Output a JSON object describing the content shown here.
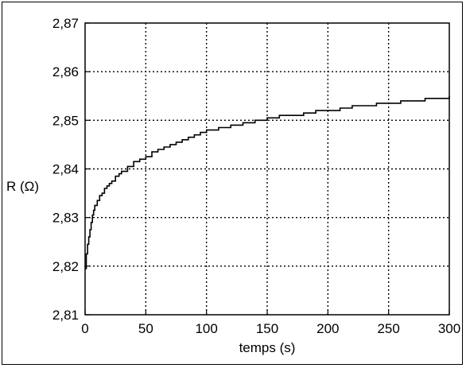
{
  "chart_data": {
    "type": "line",
    "title": "",
    "xlabel": "temps (s)",
    "ylabel": "R (Ω)",
    "xlim": [
      0,
      300
    ],
    "ylim": [
      2.81,
      2.87
    ],
    "x_ticks": [
      "0",
      "50",
      "100",
      "150",
      "200",
      "250",
      "300"
    ],
    "y_ticks": [
      "2,81",
      "2,82",
      "2,83",
      "2,84",
      "2,85",
      "2,86",
      "2,87"
    ],
    "grid": true,
    "series": [
      {
        "color": "#000000",
        "x": [
          0,
          1,
          2,
          3,
          4,
          5,
          6,
          7,
          8,
          10,
          12,
          14,
          16,
          18,
          20,
          22,
          25,
          28,
          30,
          35,
          40,
          45,
          50,
          55,
          60,
          65,
          70,
          75,
          80,
          85,
          90,
          95,
          100,
          110,
          120,
          130,
          140,
          150,
          160,
          170,
          180,
          190,
          200,
          210,
          220,
          230,
          240,
          250,
          260,
          270,
          280,
          290,
          300
        ],
        "y": [
          2.8195,
          2.8225,
          2.8245,
          2.826,
          2.8275,
          2.829,
          2.8305,
          2.8315,
          2.8325,
          2.8335,
          2.8345,
          2.835,
          2.836,
          2.8365,
          2.837,
          2.8375,
          2.8385,
          2.839,
          2.8395,
          2.8405,
          2.8415,
          2.842,
          2.8425,
          2.8435,
          2.844,
          2.8445,
          2.845,
          2.8455,
          2.846,
          2.8465,
          2.847,
          2.8475,
          2.848,
          2.8485,
          2.849,
          2.8495,
          2.85,
          2.8505,
          2.851,
          2.851,
          2.8515,
          2.852,
          2.852,
          2.8525,
          2.853,
          2.853,
          2.8535,
          2.8535,
          2.854,
          2.854,
          2.8545,
          2.8545,
          2.855
        ]
      }
    ]
  }
}
